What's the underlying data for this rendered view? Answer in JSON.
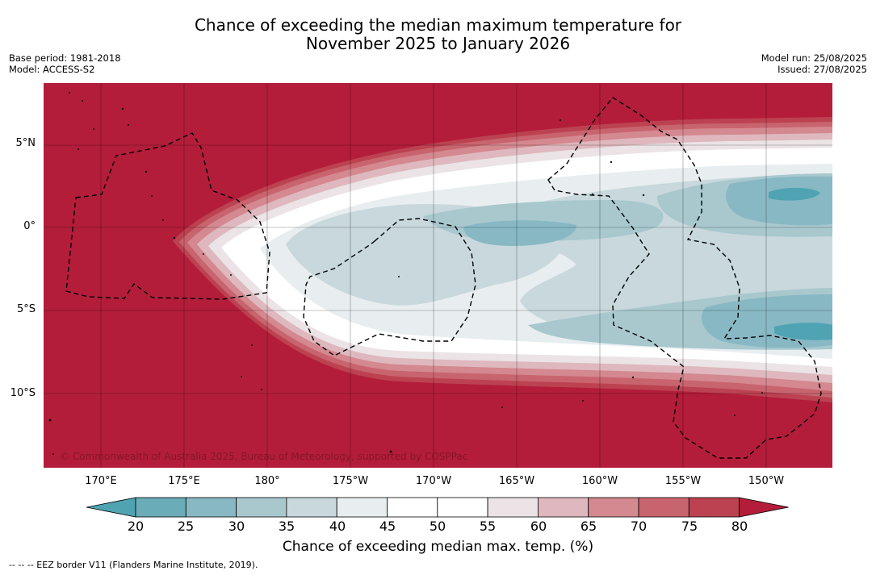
{
  "title": {
    "line1": "Chance of exceeding the median maximum temperature for",
    "line2": "November 2025 to January 2026"
  },
  "meta": {
    "base_period": "Base period: 1981-2018",
    "model": "Model: ACCESS-S2",
    "model_run": "Model run: 25/08/2025",
    "issued": "Issued: 27/08/2025"
  },
  "map": {
    "copyright": "© Commonwealth of Australia 2025, Bureau of Meteorology, supported by COSPPac",
    "lat_labels": [
      "5°N",
      "0°",
      "5°S",
      "10°S"
    ],
    "lon_labels": [
      "170°E",
      "175°E",
      "180°",
      "175°W",
      "170°W",
      "165°W",
      "160°W",
      "155°W",
      "150°W"
    ]
  },
  "colorbar": {
    "ticks": [
      "20",
      "25",
      "30",
      "35",
      "40",
      "45",
      "50",
      "55",
      "60",
      "65",
      "70",
      "75",
      "80"
    ],
    "colors": [
      "#4fa3b2",
      "#6aacb8",
      "#88b8c4",
      "#a8c8ce",
      "#c8d8dc",
      "#e8eef0",
      "#ffffff",
      "#ffffff",
      "#ebe3e5",
      "#deb8be",
      "#d4888f",
      "#c8646e",
      "#bc4252",
      "#b31d3a"
    ],
    "label": "Chance of exceeding median max. temp. (%)"
  },
  "legend": {
    "eez": "--  --  -- EEZ border V11 (Flanders Marine Institute, 2019)."
  }
}
